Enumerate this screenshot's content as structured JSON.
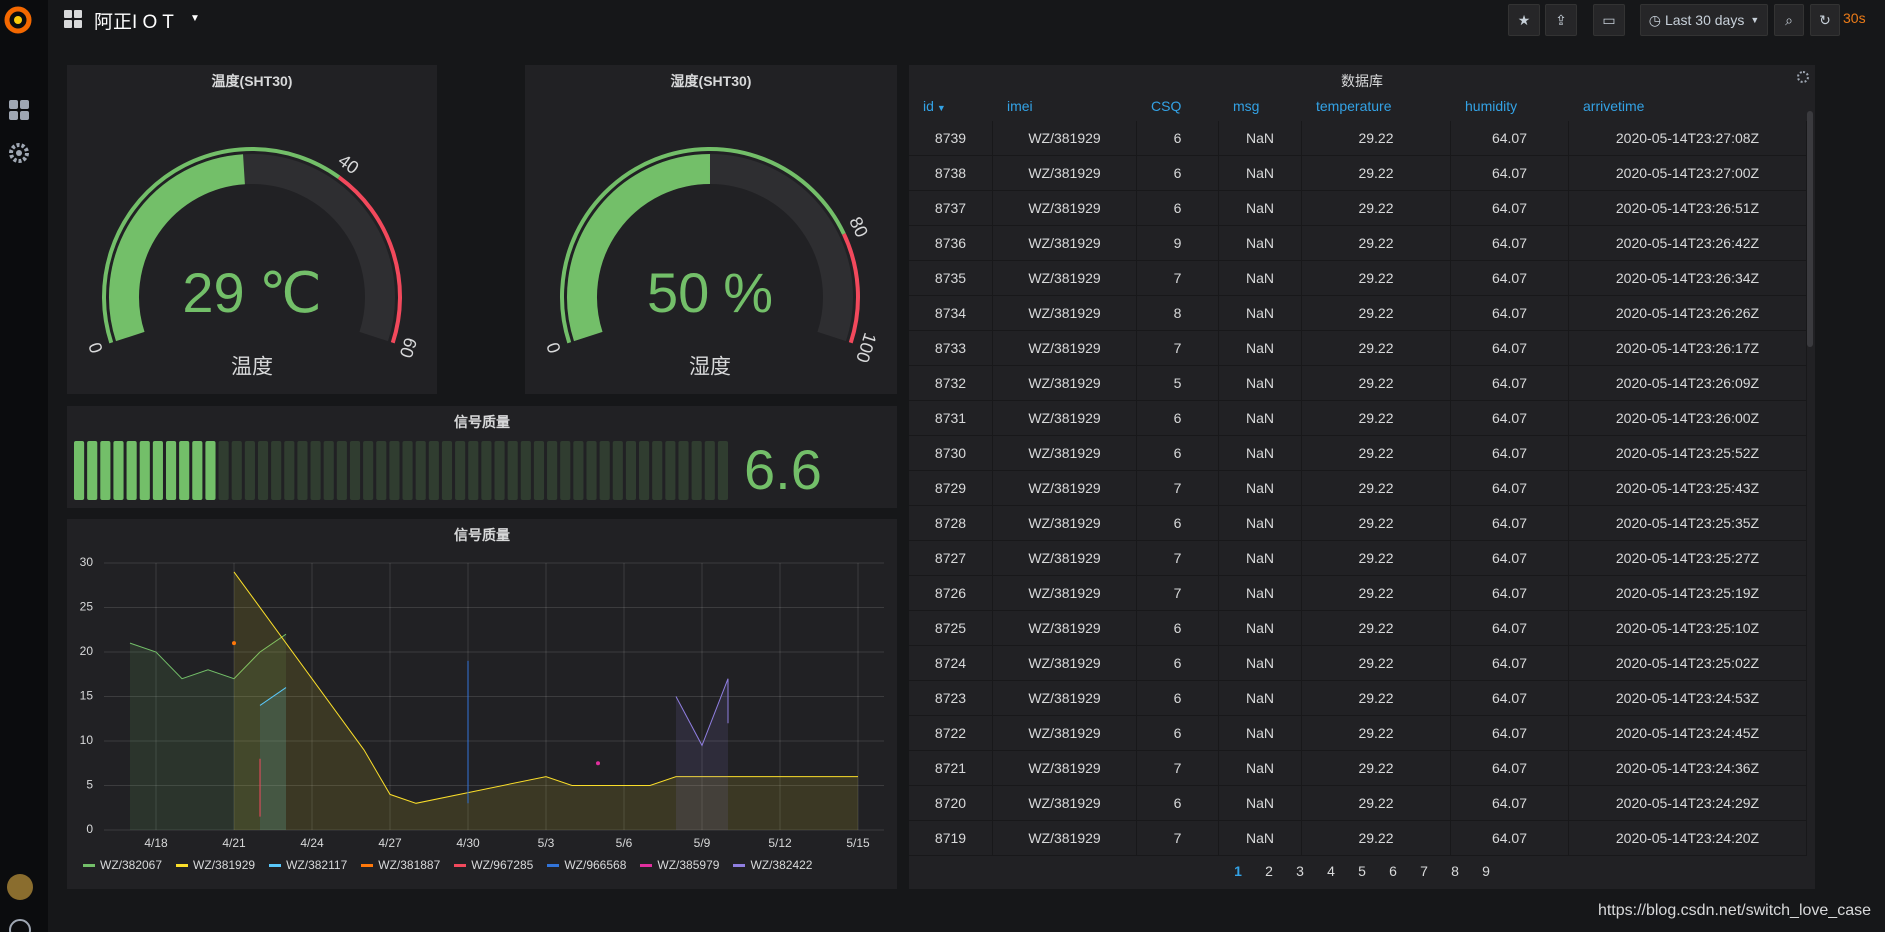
{
  "header": {
    "title": "阿正I O T",
    "time_range": "Last 30 days",
    "refresh": "30s"
  },
  "gauges": [
    {
      "title": "温度(SHT30)",
      "value": 29,
      "unit": "℃",
      "label": "温度",
      "range": [
        0,
        60
      ],
      "thresholds": [
        40
      ],
      "colors": [
        "#73bf69",
        "#f2495c"
      ]
    },
    {
      "title": "湿度(SHT30)",
      "value": 50,
      "unit": "%",
      "label": "湿度",
      "range": [
        0,
        100
      ],
      "thresholds": [
        80
      ],
      "colors": [
        "#73bf69",
        "#f2495c"
      ]
    }
  ],
  "bar_gauge": {
    "title": "信号质量",
    "value": 6.6,
    "range": [
      0,
      30
    ],
    "color": "#73bf69"
  },
  "graph": {
    "type": "line",
    "title": "信号质量",
    "xlim": [
      "4/16",
      "5/16"
    ],
    "xticks": [
      "4/18",
      "4/21",
      "4/24",
      "4/27",
      "4/30",
      "5/3",
      "5/6",
      "5/9",
      "5/12",
      "5/15"
    ],
    "ylim": [
      0,
      30
    ],
    "yticks": [
      0,
      5,
      10,
      15,
      20,
      25,
      30
    ],
    "grid": true,
    "fill": true,
    "series": [
      {
        "name": "WZ/382067",
        "color": "#73bf69",
        "x": [
          "4/17",
          "4/18",
          "4/19",
          "4/20",
          "4/21",
          "4/22",
          "4/23"
        ],
        "values": [
          21,
          20,
          17,
          18,
          17,
          20,
          22
        ]
      },
      {
        "name": "WZ/381929",
        "color": "#fade2a",
        "x": [
          "4/21",
          "4/26",
          "4/27",
          "4/28",
          "5/3",
          "5/4",
          "5/7",
          "5/8",
          "5/15"
        ],
        "values": [
          29,
          9,
          4,
          3,
          6,
          5,
          5,
          6,
          6
        ]
      },
      {
        "name": "WZ/382117",
        "color": "#5ac8fa",
        "x": [
          "4/22",
          "4/23"
        ],
        "values": [
          14,
          16
        ]
      },
      {
        "name": "WZ/381887",
        "color": "#ff780a",
        "x": [
          "4/21"
        ],
        "values": [
          21
        ]
      },
      {
        "name": "WZ/967285",
        "color": "#f2495c",
        "x": [
          "4/22",
          "4/22"
        ],
        "values": [
          8,
          1.5
        ]
      },
      {
        "name": "WZ/966568",
        "color": "#3274d9",
        "x": [
          "4/30",
          "4/30"
        ],
        "values": [
          19,
          3
        ]
      },
      {
        "name": "WZ/385979",
        "color": "#e02f9e",
        "x": [
          "5/5"
        ],
        "values": [
          7.5
        ]
      },
      {
        "name": "WZ/382422",
        "color": "#8f7ee0",
        "x": [
          "5/8",
          "5/9",
          "5/10",
          "5/10"
        ],
        "values": [
          15,
          9.5,
          17,
          12
        ]
      }
    ]
  },
  "table": {
    "title": "数据库",
    "columns": [
      "id",
      "imei",
      "CSQ",
      "msg",
      "temperature",
      "humidity",
      "arrivetime"
    ],
    "rows": [
      [
        8739,
        "WZ/381929",
        6,
        "NaN",
        29.22,
        64.07,
        "2020-05-14T23:27:08Z"
      ],
      [
        8738,
        "WZ/381929",
        6,
        "NaN",
        29.22,
        64.07,
        "2020-05-14T23:27:00Z"
      ],
      [
        8737,
        "WZ/381929",
        6,
        "NaN",
        29.22,
        64.07,
        "2020-05-14T23:26:51Z"
      ],
      [
        8736,
        "WZ/381929",
        9,
        "NaN",
        29.22,
        64.07,
        "2020-05-14T23:26:42Z"
      ],
      [
        8735,
        "WZ/381929",
        7,
        "NaN",
        29.22,
        64.07,
        "2020-05-14T23:26:34Z"
      ],
      [
        8734,
        "WZ/381929",
        8,
        "NaN",
        29.22,
        64.07,
        "2020-05-14T23:26:26Z"
      ],
      [
        8733,
        "WZ/381929",
        7,
        "NaN",
        29.22,
        64.07,
        "2020-05-14T23:26:17Z"
      ],
      [
        8732,
        "WZ/381929",
        5,
        "NaN",
        29.22,
        64.07,
        "2020-05-14T23:26:09Z"
      ],
      [
        8731,
        "WZ/381929",
        6,
        "NaN",
        29.22,
        64.07,
        "2020-05-14T23:26:00Z"
      ],
      [
        8730,
        "WZ/381929",
        6,
        "NaN",
        29.22,
        64.07,
        "2020-05-14T23:25:52Z"
      ],
      [
        8729,
        "WZ/381929",
        7,
        "NaN",
        29.22,
        64.07,
        "2020-05-14T23:25:43Z"
      ],
      [
        8728,
        "WZ/381929",
        6,
        "NaN",
        29.22,
        64.07,
        "2020-05-14T23:25:35Z"
      ],
      [
        8727,
        "WZ/381929",
        7,
        "NaN",
        29.22,
        64.07,
        "2020-05-14T23:25:27Z"
      ],
      [
        8726,
        "WZ/381929",
        7,
        "NaN",
        29.22,
        64.07,
        "2020-05-14T23:25:19Z"
      ],
      [
        8725,
        "WZ/381929",
        6,
        "NaN",
        29.22,
        64.07,
        "2020-05-14T23:25:10Z"
      ],
      [
        8724,
        "WZ/381929",
        6,
        "NaN",
        29.22,
        64.07,
        "2020-05-14T23:25:02Z"
      ],
      [
        8723,
        "WZ/381929",
        6,
        "NaN",
        29.22,
        64.07,
        "2020-05-14T23:24:53Z"
      ],
      [
        8722,
        "WZ/381929",
        6,
        "NaN",
        29.22,
        64.07,
        "2020-05-14T23:24:45Z"
      ],
      [
        8721,
        "WZ/381929",
        7,
        "NaN",
        29.22,
        64.07,
        "2020-05-14T23:24:36Z"
      ],
      [
        8720,
        "WZ/381929",
        6,
        "NaN",
        29.22,
        64.07,
        "2020-05-14T23:24:29Z"
      ],
      [
        8719,
        "WZ/381929",
        7,
        "NaN",
        29.22,
        64.07,
        "2020-05-14T23:24:20Z"
      ]
    ],
    "pages": [
      1,
      2,
      3,
      4,
      5,
      6,
      7,
      8,
      9
    ]
  },
  "watermark": "https://blog.csdn.net/switch_love_case"
}
